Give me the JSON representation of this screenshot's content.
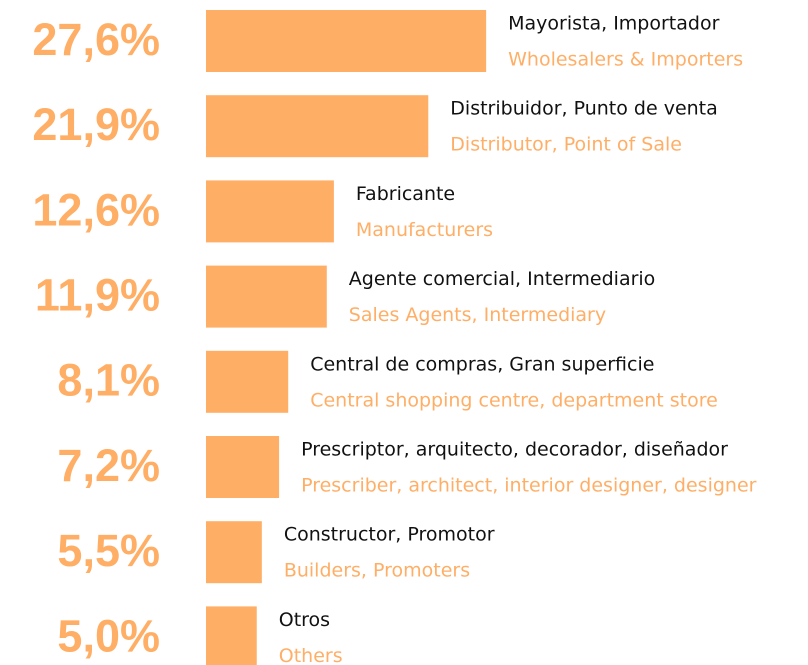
{
  "chart_data": {
    "type": "bar",
    "orientation": "horizontal",
    "color": "#ffae66",
    "categories": [
      "Mayorista, Importador",
      "Distribuidor, Punto de venta",
      "Fabricante",
      "Agente comercial, Intermediario",
      "Central de compras, Gran superficie",
      "Prescriptor, arquitecto, decorador, diseñador",
      "Constructor, Promotor",
      "Otros"
    ],
    "category_translations": [
      "Wholesalers & Importers",
      "Distributor, Point of Sale",
      "Manufacturers",
      "Sales Agents, Intermediary",
      "Central shopping centre, department store",
      "Prescriber, architect, interior designer, designer",
      "Builders, Promoters",
      "Others"
    ],
    "values": [
      27.6,
      21.9,
      12.6,
      11.9,
      8.1,
      7.2,
      5.5,
      5.0
    ],
    "value_labels": [
      "27,6%",
      "21,9%",
      "12,6%",
      "11,9%",
      "8,1%",
      "7,2%",
      "5,5%",
      "5,0%"
    ]
  }
}
